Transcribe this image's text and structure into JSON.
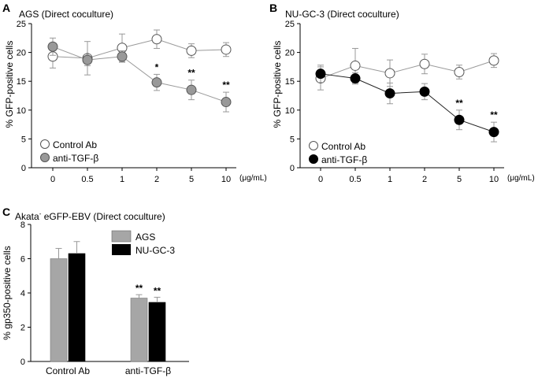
{
  "chart_data": [
    {
      "panel": "A",
      "type": "line",
      "title": "AGS (Direct coculture)",
      "ylabel": "% GFP-positive cells",
      "xunit": "(μg/mL)",
      "categories": [
        "0",
        "0.5",
        "1",
        "2",
        "5",
        "10"
      ],
      "ylim": [
        0,
        25
      ],
      "yticks": [
        "0",
        "5",
        "10",
        "15",
        "20",
        "25"
      ],
      "series": [
        {
          "name": "Control Ab",
          "marker": "open",
          "values": [
            19.3,
            19.0,
            20.8,
            22.3,
            20.3,
            20.5
          ],
          "errors": [
            2.0,
            2.9,
            2.4,
            1.6,
            1.2,
            1.2
          ]
        },
        {
          "name": "anti-TGF-β",
          "marker": "gray",
          "values": [
            21.0,
            18.7,
            19.3,
            14.8,
            13.5,
            11.4
          ],
          "errors": [
            1.5,
            1.0,
            1.0,
            1.4,
            1.7,
            1.7
          ]
        }
      ],
      "significance": [
        {
          "index": 3,
          "label": "*"
        },
        {
          "index": 4,
          "label": "**"
        },
        {
          "index": 5,
          "label": "**"
        }
      ],
      "legend": "bottom-left"
    },
    {
      "panel": "B",
      "type": "line",
      "title": "NU-GC-3 (Direct coculture)",
      "ylabel": "% GFP-positive cells",
      "xunit": "(μg/mL)",
      "categories": [
        "0",
        "0.5",
        "1",
        "2",
        "5",
        "10"
      ],
      "ylim": [
        0,
        25
      ],
      "yticks": [
        "0",
        "5",
        "10",
        "15",
        "20",
        "25"
      ],
      "series": [
        {
          "name": "Control Ab",
          "marker": "open",
          "values": [
            15.5,
            17.7,
            16.4,
            18.0,
            16.6,
            18.6
          ],
          "errors": [
            2.0,
            3.0,
            2.3,
            1.7,
            1.2,
            1.2
          ]
        },
        {
          "name": "anti-TGF-β",
          "marker": "black",
          "values": [
            16.3,
            15.5,
            12.9,
            13.2,
            8.3,
            6.2
          ],
          "errors": [
            1.5,
            1.0,
            1.8,
            1.4,
            1.7,
            1.7
          ]
        }
      ],
      "significance": [
        {
          "index": 4,
          "label": "**"
        },
        {
          "index": 5,
          "label": "**"
        }
      ],
      "legend": "bottom-left"
    },
    {
      "panel": "C",
      "type": "bar",
      "title_prefix": "Akata",
      "title_superscript": "-",
      "title_suffix": " eGFP-EBV (Direct coculture)",
      "ylabel": "% gp350-positive cells",
      "categories": [
        "Control Ab",
        "anti-TGF-β"
      ],
      "ylim": [
        0,
        8
      ],
      "yticks": [
        "0",
        "2",
        "4",
        "6",
        "8"
      ],
      "series": [
        {
          "name": "AGS",
          "color": "#a6a6a6",
          "values": [
            6.0,
            3.7
          ],
          "errors": [
            0.6,
            0.2
          ]
        },
        {
          "name": "NU-GC-3",
          "color": "#000000",
          "values": [
            6.3,
            3.45
          ],
          "errors": [
            0.7,
            0.3
          ]
        }
      ],
      "significance": [
        {
          "series": 0,
          "category": 1,
          "label": "**"
        },
        {
          "series": 1,
          "category": 1,
          "label": "**"
        }
      ],
      "legend": "top-center"
    }
  ]
}
